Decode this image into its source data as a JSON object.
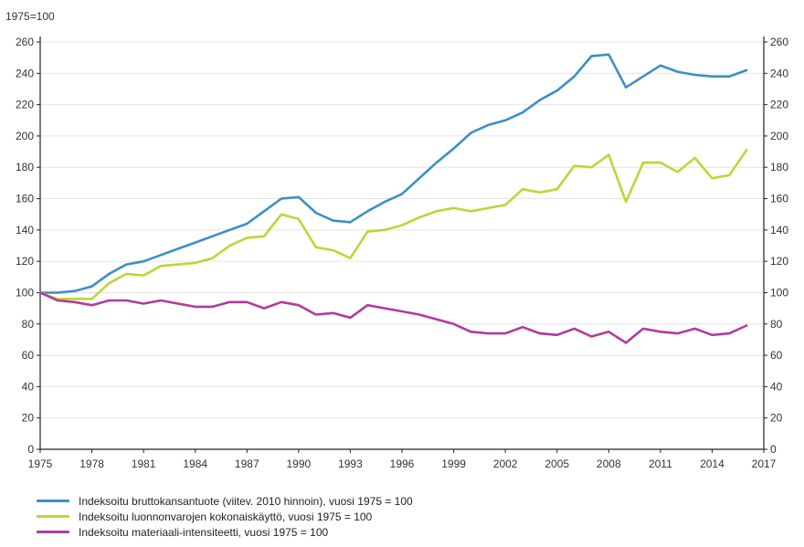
{
  "chart_data": {
    "type": "line",
    "unit_label": "1975=100",
    "x": [
      1975,
      1976,
      1977,
      1978,
      1979,
      1980,
      1981,
      1982,
      1983,
      1984,
      1985,
      1986,
      1987,
      1988,
      1989,
      1990,
      1991,
      1992,
      1993,
      1994,
      1995,
      1996,
      1997,
      1998,
      1999,
      2000,
      2001,
      2002,
      2003,
      2004,
      2005,
      2006,
      2007,
      2008,
      2009,
      2010,
      2011,
      2012,
      2013,
      2014,
      2015,
      2016
    ],
    "xlim": [
      1975,
      2017
    ],
    "x_ticks": [
      1975,
      1978,
      1981,
      1984,
      1987,
      1990,
      1993,
      1996,
      1999,
      2002,
      2005,
      2008,
      2011,
      2014,
      2017
    ],
    "ylim": [
      0,
      260
    ],
    "y_ticks": [
      0,
      20,
      40,
      60,
      80,
      100,
      120,
      140,
      160,
      180,
      200,
      220,
      240,
      260
    ],
    "series": [
      {
        "name": "Indeksoitu bruttokansantuote (viitev. 2010 hinnoin), vuosi 1975 = 100",
        "color": "#3a8fc9",
        "values": [
          100,
          100,
          101,
          104,
          112,
          118,
          120,
          124,
          128,
          132,
          136,
          140,
          144,
          152,
          160,
          161,
          151,
          146,
          145,
          152,
          158,
          163,
          173,
          183,
          192,
          202,
          207,
          210,
          215,
          223,
          229,
          238,
          251,
          252,
          231,
          238,
          245,
          241,
          239,
          238,
          238,
          242
        ]
      },
      {
        "name": "Indeksoitu luonnonvarojen kokonaiskäyttö, vuosi 1975 = 100",
        "color": "#bcd638",
        "values": [
          100,
          96,
          96,
          96,
          106,
          112,
          111,
          117,
          118,
          119,
          122,
          130,
          135,
          136,
          150,
          147,
          129,
          127,
          122,
          139,
          140,
          143,
          148,
          152,
          154,
          152,
          154,
          156,
          166,
          164,
          166,
          181,
          180,
          188,
          158,
          183,
          183,
          177,
          186,
          173,
          175,
          191
        ]
      },
      {
        "name": "Indeksoitu materiaali-intensiteetti, vuosi 1975 = 100",
        "color": "#b23a9c",
        "values": [
          100,
          95,
          94,
          92,
          95,
          95,
          93,
          95,
          93,
          91,
          91,
          94,
          94,
          90,
          94,
          92,
          86,
          87,
          84,
          92,
          90,
          88,
          86,
          83,
          80,
          75,
          74,
          74,
          78,
          74,
          73,
          77,
          72,
          75,
          68,
          77,
          75,
          74,
          77,
          73,
          74,
          79
        ]
      }
    ]
  }
}
